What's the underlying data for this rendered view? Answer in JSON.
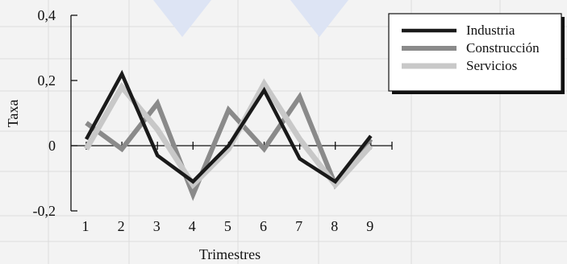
{
  "chart_data": {
    "type": "line",
    "title": "",
    "xlabel": "Trimestres",
    "ylabel": "Taxa",
    "x": [
      "1",
      "2",
      "3",
      "4",
      "5",
      "6",
      "7",
      "8",
      "9"
    ],
    "ylim": [
      -0.2,
      0.4
    ],
    "yticks": [
      "-0,2",
      "0",
      "0,2",
      "0,4"
    ],
    "grid": false,
    "legend_position": "top-right",
    "series": [
      {
        "name": "Industria",
        "values": [
          0.02,
          0.22,
          -0.03,
          -0.11,
          0.0,
          0.17,
          -0.04,
          -0.11,
          0.03
        ],
        "color": "#1a1a1a"
      },
      {
        "name": "Construcción",
        "values": [
          0.07,
          -0.01,
          0.13,
          -0.15,
          0.11,
          -0.01,
          0.15,
          -0.12,
          0.02
        ],
        "color": "#8a8a8a"
      },
      {
        "name": "Servicios",
        "values": [
          -0.01,
          0.18,
          0.05,
          -0.12,
          -0.01,
          0.19,
          0.02,
          -0.12,
          0.0
        ],
        "color": "#c8c8c8"
      }
    ]
  }
}
